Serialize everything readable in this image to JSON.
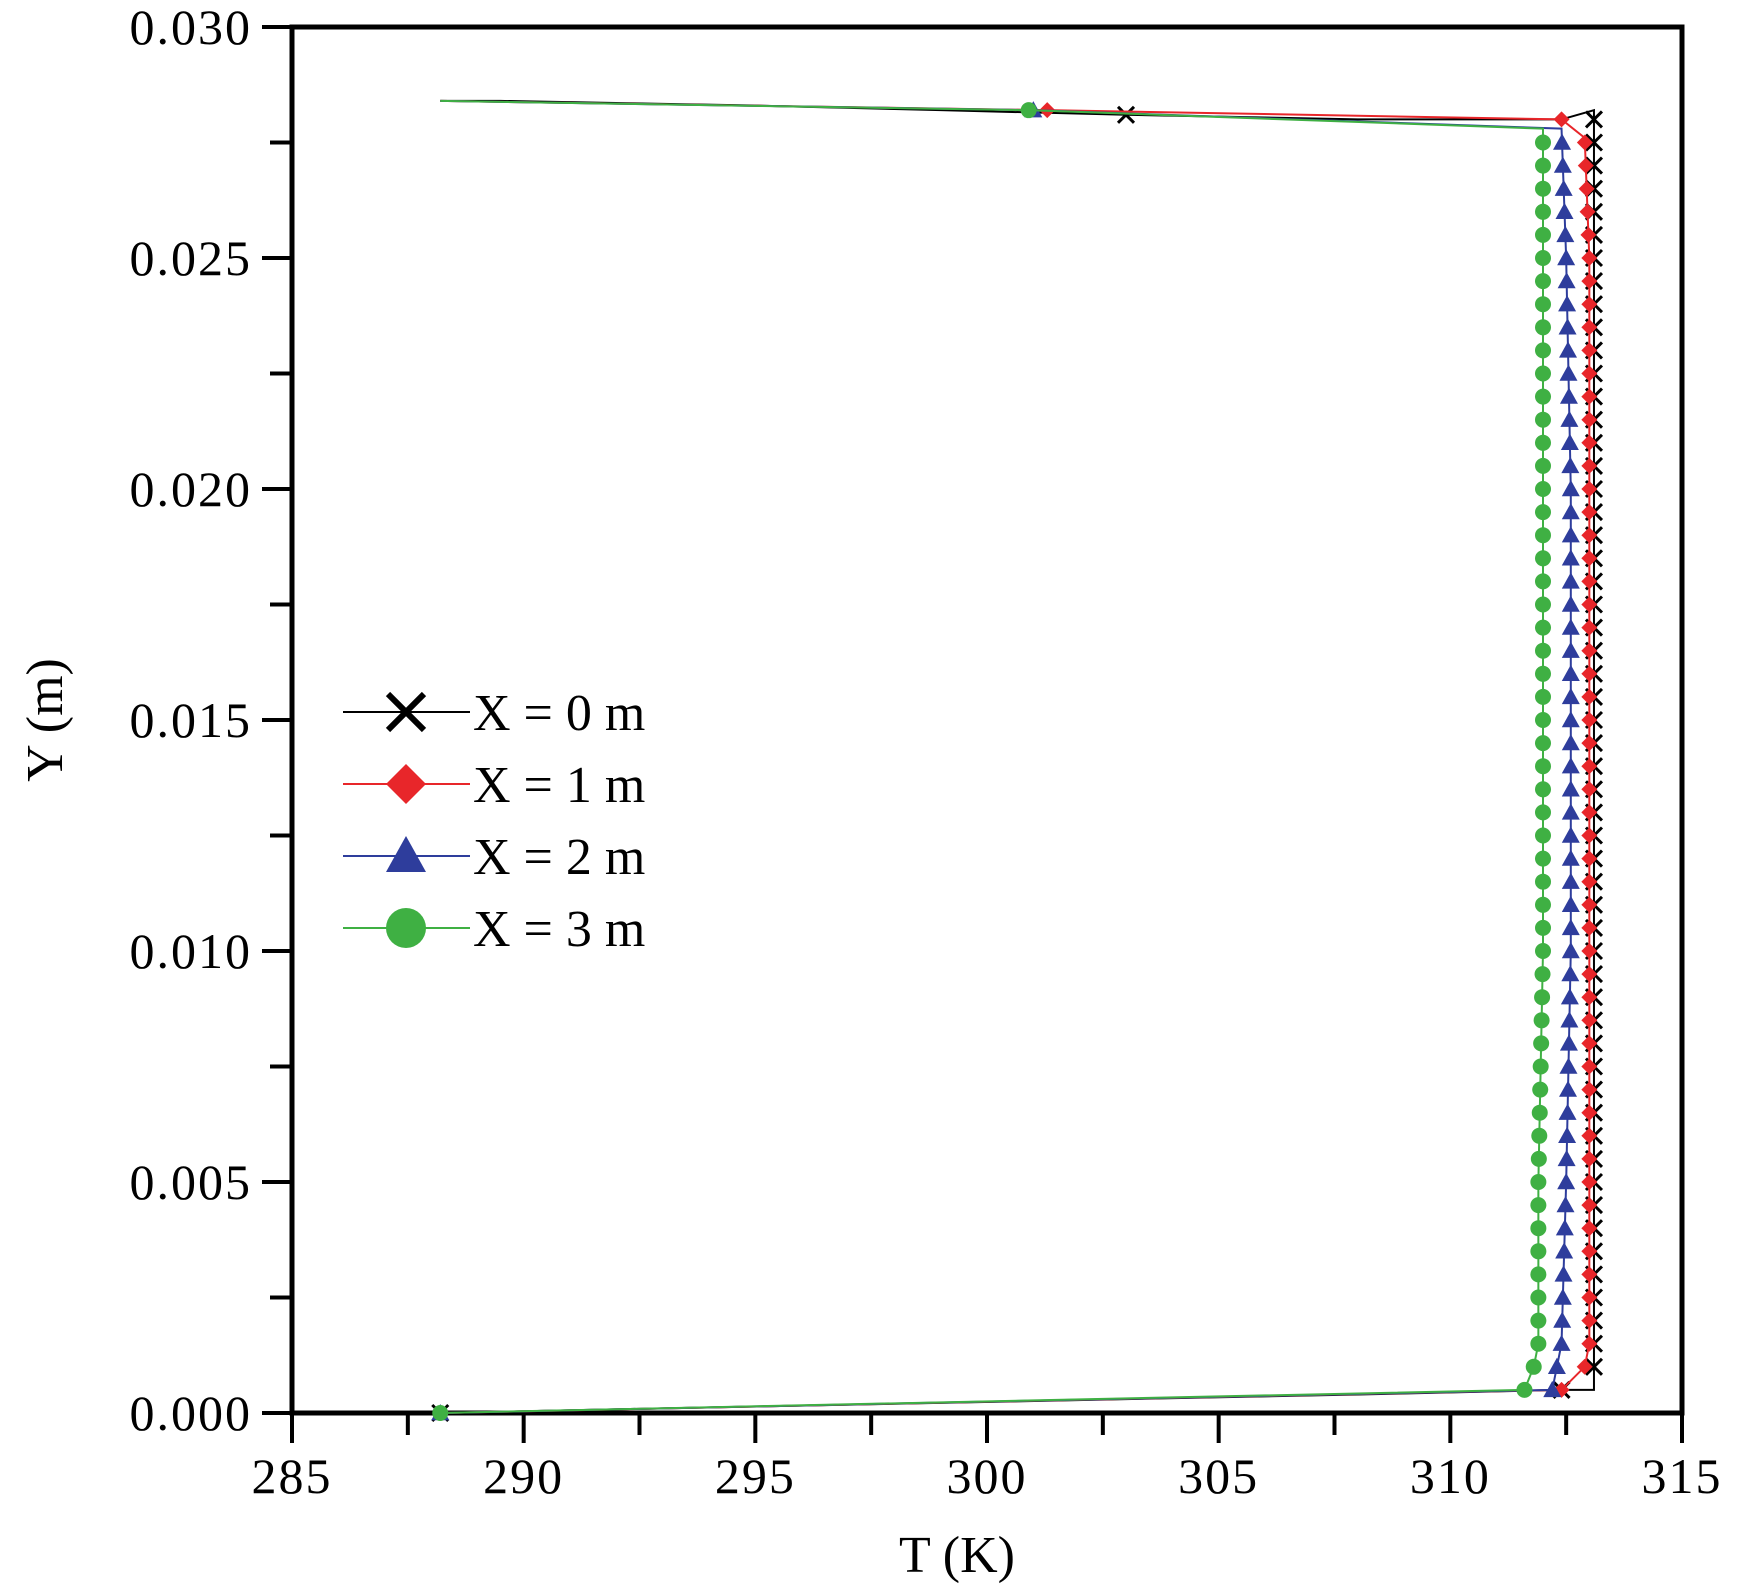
{
  "chart_data": {
    "type": "line",
    "title": "",
    "xlabel": "T (K)",
    "ylabel": "Y (m)",
    "xlim": [
      285,
      315
    ],
    "ylim": [
      0.0,
      0.03
    ],
    "x_ticks": [
      "285",
      "290",
      "295",
      "300",
      "305",
      "310",
      "315"
    ],
    "y_ticks": [
      "0.000",
      "0.005",
      "0.010",
      "0.015",
      "0.020",
      "0.025",
      "0.030"
    ],
    "grid": false,
    "legend_position": "middle-left",
    "series": [
      {
        "name": "X = 0 m",
        "color": "#000000",
        "marker": "x",
        "points": [
          [
            288.2,
            0.0
          ],
          [
            293,
            0.0001
          ],
          [
            298,
            0.0002
          ],
          [
            303,
            0.0003
          ],
          [
            308,
            0.0004
          ],
          [
            312.4,
            0.0005
          ],
          [
            313.1,
            0.0005
          ],
          [
            313.1,
            0.0012
          ],
          [
            313.1,
            0.0025
          ],
          [
            313.1,
            0.005
          ],
          [
            313.1,
            0.01
          ],
          [
            313.1,
            0.015
          ],
          [
            313.1,
            0.02
          ],
          [
            313.1,
            0.025
          ],
          [
            313.1,
            0.0272
          ],
          [
            313.1,
            0.0282
          ],
          [
            312.4,
            0.028
          ],
          [
            308,
            0.028
          ],
          [
            303,
            0.0281
          ],
          [
            299,
            0.0282
          ],
          [
            295,
            0.0283
          ],
          [
            289.5,
            0.0284
          ],
          [
            288.2,
            0.0284
          ]
        ]
      },
      {
        "name": "X = 1 m",
        "color": "#e8262a",
        "marker": "diamond",
        "points": [
          [
            288.2,
            0.0
          ],
          [
            312.4,
            0.0005
          ],
          [
            312.9,
            0.001
          ],
          [
            313.0,
            0.0015
          ],
          [
            313.0,
            0.005
          ],
          [
            313.0,
            0.01
          ],
          [
            313.0,
            0.015
          ],
          [
            313.0,
            0.02
          ],
          [
            313.0,
            0.025
          ],
          [
            312.9,
            0.0276
          ],
          [
            312.4,
            0.028
          ],
          [
            301.3,
            0.0282
          ],
          [
            288.2,
            0.0284
          ]
        ]
      },
      {
        "name": "X = 2 m",
        "color": "#2e3d9c",
        "marker": "triangle",
        "points": [
          [
            288.2,
            0.0
          ],
          [
            312.2,
            0.0005
          ],
          [
            312.3,
            0.001
          ],
          [
            312.4,
            0.0015
          ],
          [
            312.5,
            0.005
          ],
          [
            312.6,
            0.01
          ],
          [
            312.6,
            0.015
          ],
          [
            312.6,
            0.02
          ],
          [
            312.5,
            0.025
          ],
          [
            312.4,
            0.0278
          ],
          [
            301.0,
            0.0282
          ],
          [
            288.2,
            0.0284
          ]
        ]
      },
      {
        "name": "X = 3 m",
        "color": "#3fb043",
        "marker": "circle",
        "points": [
          [
            288.2,
            0.0
          ],
          [
            311.6,
            0.0005
          ],
          [
            311.8,
            0.001
          ],
          [
            311.9,
            0.0015
          ],
          [
            311.9,
            0.005
          ],
          [
            312.0,
            0.01
          ],
          [
            312.0,
            0.015
          ],
          [
            312.0,
            0.02
          ],
          [
            312.0,
            0.025
          ],
          [
            312.0,
            0.0278
          ],
          [
            300.9,
            0.0282
          ],
          [
            288.2,
            0.0284
          ]
        ]
      }
    ]
  }
}
